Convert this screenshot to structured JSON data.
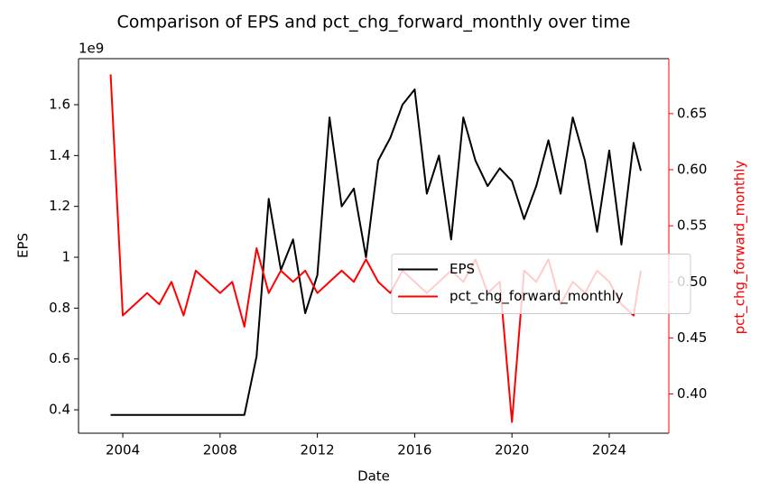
{
  "chart_data": {
    "type": "line",
    "title": "Comparison of EPS and pct_chg_forward_monthly over time",
    "xlabel": "Date",
    "ylabel": "EPS",
    "y2label": "pct_chg_forward_monthly",
    "y_offset_label": "1e9",
    "x": [
      2003.5,
      2004,
      2004.5,
      2005,
      2005.5,
      2006,
      2006.5,
      2007,
      2007.5,
      2008,
      2008.5,
      2009,
      2009.5,
      2010,
      2010.5,
      2011,
      2011.5,
      2012,
      2012.5,
      2013,
      2013.5,
      2014,
      2014.5,
      2015,
      2015.5,
      2016,
      2016.5,
      2017,
      2017.5,
      2018,
      2018.5,
      2019,
      2019.5,
      2020,
      2020.5,
      2021,
      2021.5,
      2022,
      2022.5,
      2023,
      2023.5,
      2024,
      2024.5,
      2025,
      2025.3
    ],
    "xlim": [
      2002.18,
      2026.45
    ],
    "xticks": [
      2004,
      2008,
      2012,
      2016,
      2020,
      2024
    ],
    "ylim": [
      0.308,
      1.781
    ],
    "yticks": [
      0.4,
      0.6,
      0.8,
      1.0,
      1.2,
      1.4,
      1.6
    ],
    "y2lim": [
      0.365,
      0.699
    ],
    "y2ticks": [
      {
        "value": 0.4,
        "label": "0.40"
      },
      0.45,
      {
        "value": 0.5,
        "label": "0.50"
      },
      0.55,
      {
        "value": 0.6,
        "label": "0.60"
      },
      0.65
    ],
    "y2color": "#ff0000",
    "legend": "center right",
    "series": [
      {
        "name": "EPS",
        "color": "#000000",
        "values": [
          0.38,
          0.38,
          0.38,
          0.38,
          0.38,
          0.38,
          0.38,
          0.38,
          0.38,
          0.38,
          0.38,
          0.38,
          0.61,
          1.23,
          0.95,
          1.07,
          0.78,
          0.93,
          1.55,
          1.2,
          1.27,
          1.0,
          1.38,
          1.47,
          1.6,
          1.66,
          1.25,
          1.4,
          1.07,
          1.55,
          1.38,
          1.28,
          1.35,
          1.3,
          1.15,
          1.28,
          1.46,
          1.25,
          1.55,
          1.38,
          1.1,
          1.42,
          1.05,
          1.45,
          1.34
        ]
      },
      {
        "name": "pct_chg_forward_monthly",
        "color": "#ff0000",
        "axis": "y2",
        "values": [
          0.685,
          0.47,
          0.48,
          0.49,
          0.48,
          0.5,
          0.47,
          0.51,
          0.5,
          0.49,
          0.5,
          0.46,
          0.53,
          0.49,
          0.51,
          0.5,
          0.51,
          0.49,
          0.5,
          0.51,
          0.5,
          0.52,
          0.5,
          0.49,
          0.51,
          0.5,
          0.49,
          0.5,
          0.51,
          0.5,
          0.52,
          0.49,
          0.5,
          0.375,
          0.51,
          0.5,
          0.52,
          0.48,
          0.5,
          0.49,
          0.51,
          0.5,
          0.48,
          0.47,
          0.51
        ]
      }
    ]
  }
}
